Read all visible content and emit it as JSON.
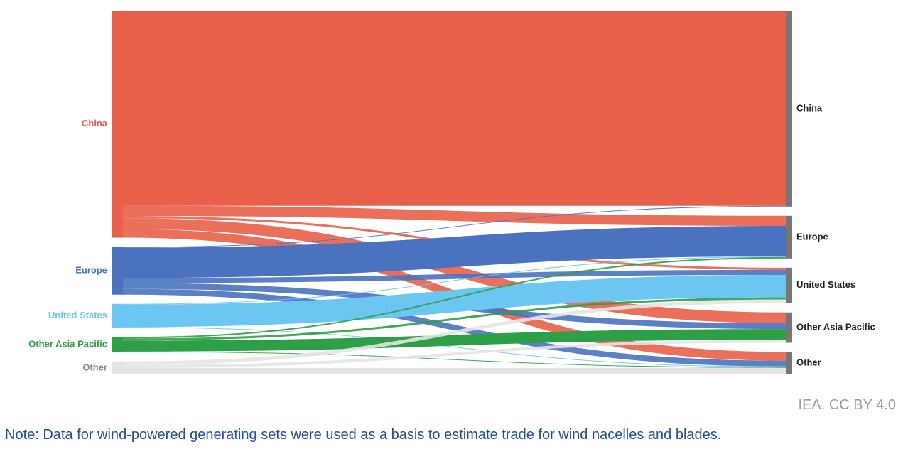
{
  "chart_data": {
    "type": "sankey",
    "title": "",
    "source_nodes": [
      {
        "name": "China",
        "color": "#e9604a"
      },
      {
        "name": "Europe",
        "color": "#4a72be"
      },
      {
        "name": "United States",
        "color": "#6cc6f2"
      },
      {
        "name": "Other Asia Pacific",
        "color": "#2d9f46"
      },
      {
        "name": "Other",
        "color": "#e4e4e4"
      }
    ],
    "target_nodes": [
      {
        "name": "China",
        "color": "#767676"
      },
      {
        "name": "Europe",
        "color": "#767676"
      },
      {
        "name": "United States",
        "color": "#767676"
      },
      {
        "name": "Other Asia Pacific",
        "color": "#767676"
      },
      {
        "name": "Other",
        "color": "#767676"
      }
    ],
    "flows": [
      {
        "source": "China",
        "target": "China",
        "value": 270
      },
      {
        "source": "China",
        "target": "Europe",
        "value": 14
      },
      {
        "source": "China",
        "target": "United States",
        "value": 3
      },
      {
        "source": "China",
        "target": "Other Asia Pacific",
        "value": 15
      },
      {
        "source": "China",
        "target": "Other",
        "value": 12
      },
      {
        "source": "Europe",
        "target": "China",
        "value": 1
      },
      {
        "source": "Europe",
        "target": "Europe",
        "value": 42
      },
      {
        "source": "Europe",
        "target": "United States",
        "value": 7
      },
      {
        "source": "Europe",
        "target": "Other Asia Pacific",
        "value": 8
      },
      {
        "source": "Europe",
        "target": "Other",
        "value": 8
      },
      {
        "source": "United States",
        "target": "Europe",
        "value": 1
      },
      {
        "source": "United States",
        "target": "United States",
        "value": 31
      },
      {
        "source": "United States",
        "target": "Other",
        "value": 1
      },
      {
        "source": "Other Asia Pacific",
        "target": "Europe",
        "value": 2
      },
      {
        "source": "Other Asia Pacific",
        "target": "United States",
        "value": 3
      },
      {
        "source": "Other Asia Pacific",
        "target": "Other Asia Pacific",
        "value": 15
      },
      {
        "source": "Other Asia Pacific",
        "target": "Other",
        "value": 1
      },
      {
        "source": "Other",
        "target": "United States",
        "value": 5
      },
      {
        "source": "Other",
        "target": "Other Asia Pacific",
        "value": 4
      },
      {
        "source": "Other",
        "target": "Other",
        "value": 9
      }
    ]
  },
  "credit": "IEA. CC BY 4.0",
  "note": "Note: Data for wind-powered generating sets were used as a basis to estimate trade for wind nacelles and blades."
}
